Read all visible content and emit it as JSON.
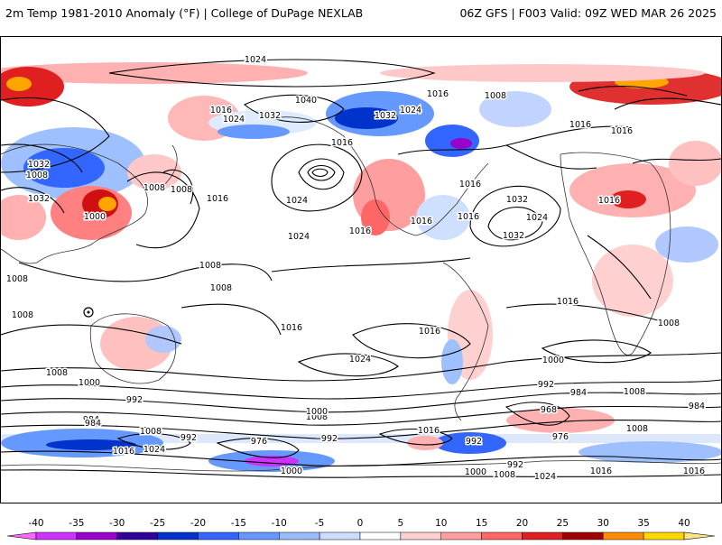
{
  "header": {
    "left_title": "2m Temp 1981-2010 Anomaly (°F) | College of DuPage NEXLAB",
    "right_title": "06Z GFS | F003 Valid: 09Z WED MAR 26 2025"
  },
  "map": {
    "isobar_labels": [
      "1024",
      "1040",
      "1016",
      "1032",
      "1024",
      "1008",
      "1016",
      "1016",
      "1032",
      "1024",
      "1032",
      "1008",
      "1008",
      "1008",
      "1016",
      "1024",
      "1016",
      "1000",
      "1016",
      "1032",
      "1024",
      "1016",
      "1008",
      "1016",
      "1008",
      "1008",
      "1016",
      "1016",
      "1016",
      "1024",
      "1016",
      "1008",
      "1000",
      "992",
      "1008",
      "1000",
      "992",
      "984",
      "1008",
      "1016",
      "1024",
      "992",
      "976",
      "992",
      "1000",
      "1008",
      "992",
      "1016",
      "1000",
      "1008",
      "992",
      "1016",
      "1024",
      "1016",
      "984",
      "968",
      "976",
      "1008",
      "984",
      "1008",
      "1032",
      "1000",
      "984",
      "1024",
      "1032",
      "1016",
      "1008",
      "1016"
    ],
    "highs_lows_markers": [
      "low-center-pacific",
      "low-center-east-pacific"
    ]
  },
  "colorbar": {
    "ticks": [
      "-40",
      "-35",
      "-30",
      "-25",
      "-20",
      "-15",
      "-10",
      "-5",
      "0",
      "5",
      "10",
      "15",
      "20",
      "25",
      "30",
      "35",
      "40"
    ],
    "colors": [
      "#ff66ff",
      "#cc33ff",
      "#9900cc",
      "#33009a",
      "#0033cc",
      "#3366ff",
      "#6699ff",
      "#99bbff",
      "#ccddff",
      "#ffffff",
      "#ffd0d0",
      "#ff9e9e",
      "#ff6666",
      "#e02020",
      "#a00000",
      "#ff8c00",
      "#ffd700",
      "#ffe680"
    ]
  }
}
